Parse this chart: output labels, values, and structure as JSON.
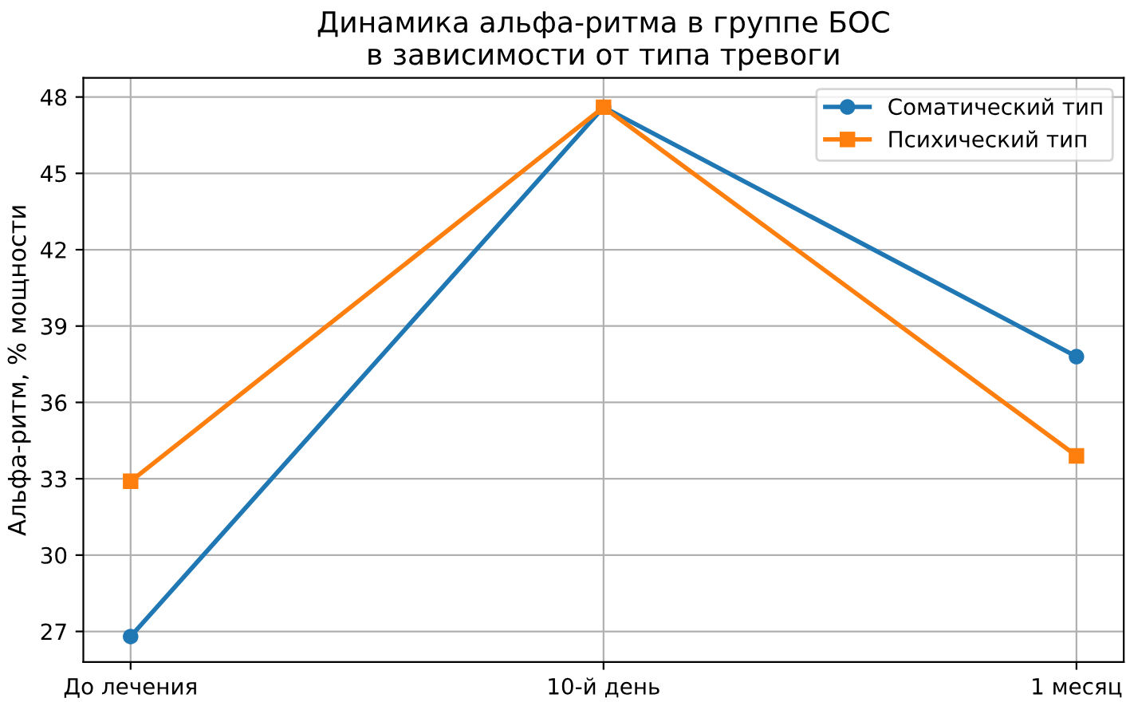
{
  "chart_data": {
    "type": "line",
    "title": "Динамика альфа-ритма в группе БОС\nв зависимости от типа тревоги",
    "ylabel": "Альфа-ритм, % мощности",
    "categories": [
      "До лечения",
      "10-й день",
      "1 месяц"
    ],
    "series": [
      {
        "name": "Соматический тип",
        "color": "#1f77b4",
        "marker": "circle",
        "values": [
          26.8,
          47.6,
          37.8
        ]
      },
      {
        "name": "Психический тип",
        "color": "#ff7f0e",
        "marker": "square",
        "values": [
          32.9,
          47.6,
          33.9
        ]
      }
    ],
    "ylim": [
      25.8,
      48.75
    ],
    "yticks": [
      27,
      30,
      33,
      36,
      39,
      42,
      45,
      48
    ],
    "grid": true,
    "legend": "top right",
    "line_style": "solid"
  }
}
